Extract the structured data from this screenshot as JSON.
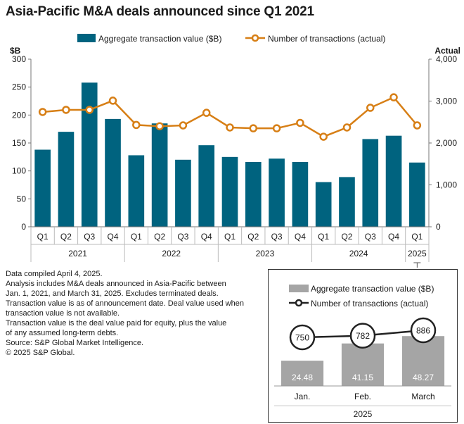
{
  "title": "Asia-Pacific M&A deals announced since Q1 2021",
  "chart_data": [
    {
      "type": "bar+line",
      "legend": [
        "Aggregate transaction value ($B)",
        "Number of transactions (actual)"
      ],
      "legend_position": "top-center",
      "left_axis": {
        "unit": "$B",
        "ticks": [
          "0",
          "50",
          "100",
          "150",
          "200",
          "250",
          "300"
        ],
        "ylim": [
          0,
          300
        ]
      },
      "right_axis": {
        "unit": "Actual",
        "ticks": [
          "0",
          "1,000",
          "2,000",
          "3,000",
          "4,000"
        ],
        "ylim": [
          0,
          4000
        ]
      },
      "categories": [
        "Q1",
        "Q2",
        "Q3",
        "Q4",
        "Q1",
        "Q2",
        "Q3",
        "Q4",
        "Q1",
        "Q2",
        "Q3",
        "Q4",
        "Q1",
        "Q2",
        "Q3",
        "Q4",
        "Q1"
      ],
      "year_groups": [
        {
          "label": "2021",
          "count": 4
        },
        {
          "label": "2022",
          "count": 4
        },
        {
          "label": "2023",
          "count": 4
        },
        {
          "label": "2024",
          "count": 4
        },
        {
          "label": "2025",
          "count": 1
        }
      ],
      "series": [
        {
          "name": "Aggregate transaction value ($B)",
          "axis": "left",
          "color": "#00637f",
          "values": [
            138,
            170,
            258,
            193,
            128,
            185,
            120,
            146,
            125,
            116,
            122,
            116,
            80,
            89,
            157,
            163,
            115
          ]
        },
        {
          "name": "Number of transactions (actual)",
          "axis": "right",
          "color": "#d77f16",
          "values": [
            2740,
            2790,
            2790,
            3010,
            2430,
            2400,
            2420,
            2720,
            2370,
            2350,
            2350,
            2480,
            2150,
            2370,
            2840,
            3090,
            2420
          ]
        }
      ],
      "grid": false
    },
    {
      "type": "bar+line",
      "legend": [
        "Aggregate transaction value ($B)",
        "Number of transactions (actual)"
      ],
      "categories": [
        "Jan.",
        "Feb.",
        "March"
      ],
      "group_label": "2025",
      "series": [
        {
          "name": "Aggregate transaction value ($B)",
          "color": "#a5a5a5",
          "values": [
            24.48,
            41.15,
            48.27
          ],
          "labels": [
            "24.48",
            "41.15",
            "48.27"
          ]
        },
        {
          "name": "Number of transactions (actual)",
          "color": "#222222",
          "values": [
            750,
            782,
            886
          ],
          "labels": [
            "750",
            "782",
            "886"
          ]
        }
      ]
    }
  ],
  "notes": [
    "Data compiled April 4, 2025.",
    "Analysis includes M&A deals announced in Asia-Pacific between",
    "Jan. 1, 2021, and March 31, 2025. Excludes terminated deals.",
    "Transaction value is as of announcement date. Deal value used when",
    "transaction value is not available.",
    "Transaction value is the deal value paid for equity, plus the value",
    "of any assumed long-term debts.",
    "Source: S&P Global Market Intelligence.",
    "© 2025 S&P Global."
  ]
}
